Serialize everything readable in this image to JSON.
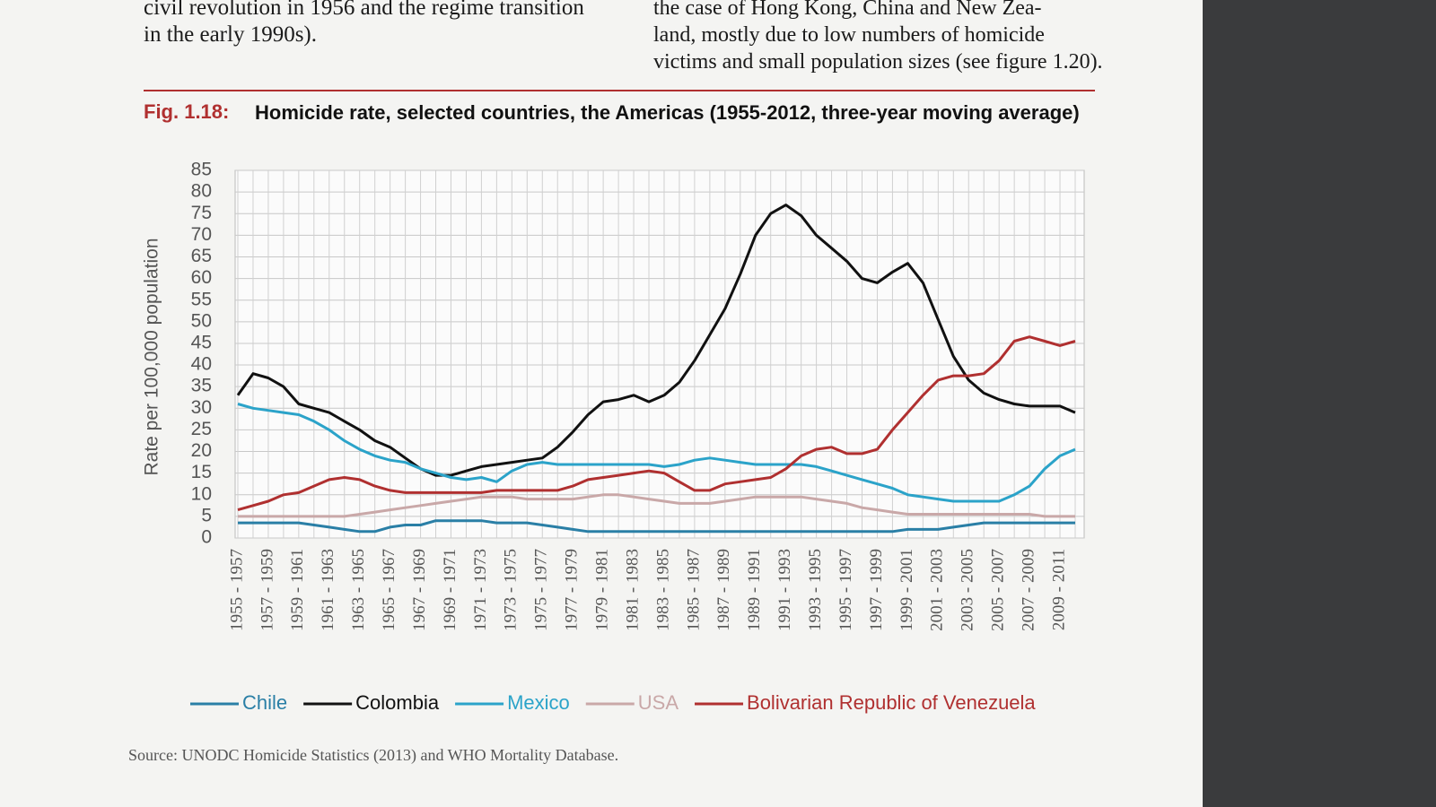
{
  "page": {
    "left_text": [
      "civil revolution in 1956 and the regime transition",
      "in the early 1990s)."
    ],
    "right_text": [
      "the case of Hong Kong, China and New Zea-",
      "land, mostly due to low numbers of homicide",
      "victims and small population sizes (see figure 1.20)."
    ],
    "figure_label": "Fig. 1.18:",
    "source": "Source: UNODC Homicide Statistics (2013) and WHO Mortality Database."
  },
  "chart_data": {
    "type": "line",
    "title": "Homicide rate, selected countries, the Americas (1955-2012, three-year moving average)",
    "y_label": "Rate per 100,000 population",
    "categories": [
      "1955 - 1957",
      null,
      "1957 - 1959",
      null,
      "1959 - 1961",
      null,
      "1961 - 1963",
      null,
      "1963 - 1965",
      null,
      "1965 - 1967",
      null,
      "1967 - 1969",
      null,
      "1969 - 1971",
      null,
      "1971 - 1973",
      null,
      "1973 - 1975",
      null,
      "1975 - 1977",
      null,
      "1977 - 1979",
      null,
      "1979 - 1981",
      null,
      "1981 - 1983",
      null,
      "1983 - 1985",
      null,
      "1985 - 1987",
      null,
      "1987 - 1989",
      null,
      "1989 - 1991",
      null,
      "1991 - 1993",
      null,
      "1993 - 1995",
      null,
      "1995 - 1997",
      null,
      "1997 - 1999",
      null,
      "1999 - 2001",
      null,
      "2001 - 2003",
      null,
      "2003 - 2005",
      null,
      "2005 - 2007",
      null,
      "2007 - 2009",
      null,
      "2009 - 2011",
      null
    ],
    "series": [
      {
        "name": "Chile",
        "color": "#2a7fa6",
        "values": [
          3.5,
          3.5,
          3.5,
          3.5,
          3.5,
          3,
          2.5,
          2,
          1.5,
          1.5,
          2.5,
          3,
          3,
          4,
          4,
          4,
          4,
          3.5,
          3.5,
          3.5,
          3,
          2.5,
          2,
          1.5,
          1.5,
          1.5,
          1.5,
          1.5,
          1.5,
          1.5,
          1.5,
          1.5,
          1.5,
          1.5,
          1.5,
          1.5,
          1.5,
          1.5,
          1.5,
          1.5,
          1.5,
          1.5,
          1.5,
          1.5,
          2,
          2,
          2,
          2.5,
          3,
          3.5,
          3.5,
          3.5,
          3.5,
          3.5,
          3.5,
          3.5
        ]
      },
      {
        "name": "Colombia",
        "color": "#111111",
        "values": [
          33,
          38,
          37,
          35,
          31,
          30,
          29,
          27,
          25,
          22.5,
          21,
          18.5,
          16,
          14.5,
          14.5,
          15.5,
          16.5,
          17,
          17.5,
          18,
          18.5,
          21,
          24.5,
          28.5,
          31.5,
          32,
          33,
          31.5,
          33,
          36,
          41,
          47,
          53,
          61,
          70,
          75,
          77,
          74.5,
          70,
          67,
          64,
          60,
          59,
          61.5,
          63.5,
          59,
          50.5,
          42,
          36.5,
          33.5,
          32,
          31,
          30.5,
          30.5,
          30.5,
          29
        ]
      },
      {
        "name": "Mexico",
        "color": "#2ba3c9",
        "values": [
          31,
          30,
          29.5,
          29,
          28.5,
          27,
          25,
          22.5,
          20.5,
          19,
          18,
          17.5,
          16,
          15,
          14,
          13.5,
          14,
          13,
          15.5,
          17,
          17.5,
          17,
          17,
          17,
          17,
          17,
          17,
          17,
          16.5,
          17,
          18,
          18.5,
          18,
          17.5,
          17,
          17,
          17,
          17,
          16.5,
          15.5,
          14.5,
          13.5,
          12.5,
          11.5,
          10,
          9.5,
          9,
          8.5,
          8.5,
          8.5,
          8.5,
          10,
          12,
          16,
          19,
          20.5
        ]
      },
      {
        "name": "USA",
        "color": "#c9a8a8",
        "values": [
          5,
          5,
          5,
          5,
          5,
          5,
          5,
          5,
          5.5,
          6,
          6.5,
          7,
          7.5,
          8,
          8.5,
          9,
          9.5,
          9.5,
          9.5,
          9,
          9,
          9,
          9,
          9.5,
          10,
          10,
          9.5,
          9,
          8.5,
          8,
          8,
          8,
          8.5,
          9,
          9.5,
          9.5,
          9.5,
          9.5,
          9,
          8.5,
          8,
          7,
          6.5,
          6,
          5.5,
          5.5,
          5.5,
          5.5,
          5.5,
          5.5,
          5.5,
          5.5,
          5.5,
          5,
          5,
          5
        ]
      },
      {
        "name": "Bolivarian Republic of Venezuela",
        "color": "#b03030",
        "values": [
          6.5,
          7.5,
          8.5,
          10,
          10.5,
          12,
          13.5,
          14,
          13.5,
          12,
          11,
          10.5,
          10.5,
          10.5,
          10.5,
          10.5,
          10.5,
          11,
          11,
          11,
          11,
          11,
          12,
          13.5,
          14,
          14.5,
          15,
          15.5,
          15,
          13,
          11,
          11,
          12.5,
          13,
          13.5,
          14,
          16,
          19,
          20.5,
          21,
          19.5,
          19.5,
          20.5,
          25,
          29,
          33,
          36.5,
          37.5,
          37.5,
          38,
          41,
          45.5,
          46.5,
          45.5,
          44.5,
          45.5
        ]
      }
    ],
    "ylim": [
      0,
      85
    ],
    "yticks": [
      0,
      5,
      10,
      15,
      20,
      25,
      30,
      35,
      40,
      45,
      50,
      55,
      60,
      65,
      70,
      75,
      80,
      85
    ],
    "grid": true,
    "legend": "bottom"
  }
}
